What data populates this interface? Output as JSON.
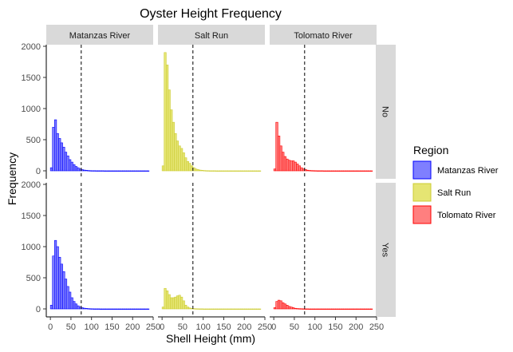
{
  "chart_data": {
    "type": "bar",
    "title": "Oyster Height Frequency",
    "xlabel": "Shell Height (mm)",
    "ylabel": "Frequency",
    "xlim": [
      -10,
      250
    ],
    "ylim": [
      0,
      2000
    ],
    "xticks": [
      0,
      50,
      100,
      150,
      200,
      250
    ],
    "yticks": [
      0,
      500,
      1000,
      1500,
      2000
    ],
    "bin_width": 5,
    "bins_start": 0,
    "reference_line_x": 75,
    "grid": false,
    "legend": {
      "title": "Region",
      "position": "right",
      "entries": [
        {
          "label": "Matanzas River",
          "fill": "#7f7fff",
          "stroke": "#0000ff"
        },
        {
          "label": "Salt Run",
          "fill": "#e5e573",
          "stroke": "#cccc33"
        },
        {
          "label": "Tolomato River",
          "fill": "#ff7f7f",
          "stroke": "#ff0000"
        }
      ]
    },
    "columns": [
      "Matanzas River",
      "Salt Run",
      "Tolomato River"
    ],
    "rows": [
      "No",
      "Yes"
    ],
    "panels": [
      {
        "row": "No",
        "column": "Matanzas River",
        "values": [
          50,
          700,
          820,
          600,
          520,
          450,
          380,
          300,
          240,
          180,
          140,
          100,
          70,
          50,
          30,
          20,
          12,
          8,
          5,
          3,
          2,
          2,
          1,
          1,
          1,
          1,
          0,
          0,
          0,
          0,
          0,
          0,
          0,
          0,
          0,
          0,
          0,
          0,
          0,
          0,
          0,
          0,
          0,
          0,
          0,
          0,
          0,
          0
        ]
      },
      {
        "row": "No",
        "column": "Salt Run",
        "values": [
          80,
          1900,
          1700,
          1300,
          980,
          780,
          600,
          480,
          400,
          360,
          290,
          210,
          150,
          120,
          80,
          50,
          30,
          20,
          12,
          8,
          5,
          3,
          2,
          1,
          1,
          1,
          0,
          0,
          0,
          0,
          0,
          0,
          0,
          0,
          0,
          0,
          0,
          0,
          0,
          0,
          0,
          0,
          0,
          0,
          0,
          0,
          0,
          0
        ]
      },
      {
        "row": "No",
        "column": "Tolomato River",
        "values": [
          30,
          780,
          560,
          400,
          300,
          230,
          190,
          170,
          160,
          160,
          140,
          110,
          80,
          50,
          30,
          20,
          10,
          6,
          4,
          3,
          2,
          1,
          1,
          1,
          0,
          0,
          0,
          0,
          0,
          0,
          0,
          0,
          0,
          0,
          0,
          0,
          0,
          0,
          0,
          0,
          0,
          0,
          0,
          0,
          0,
          0,
          0,
          0
        ]
      },
      {
        "row": "Yes",
        "column": "Matanzas River",
        "values": [
          60,
          850,
          1100,
          1000,
          830,
          720,
          600,
          480,
          360,
          270,
          180,
          120,
          80,
          50,
          30,
          20,
          12,
          8,
          5,
          3,
          2,
          1,
          1,
          1,
          0,
          0,
          0,
          0,
          0,
          0,
          0,
          0,
          0,
          0,
          0,
          0,
          0,
          0,
          0,
          0,
          0,
          0,
          0,
          0,
          0,
          0,
          0,
          0
        ]
      },
      {
        "row": "Yes",
        "column": "Salt Run",
        "values": [
          30,
          330,
          290,
          230,
          180,
          180,
          190,
          210,
          220,
          190,
          130,
          60,
          30,
          15,
          8,
          5,
          3,
          2,
          1,
          1,
          0,
          0,
          0,
          0,
          0,
          0,
          0,
          0,
          0,
          0,
          0,
          0,
          0,
          0,
          0,
          0,
          0,
          0,
          0,
          0,
          0,
          0,
          0,
          0,
          0,
          0,
          0,
          0
        ]
      },
      {
        "row": "Yes",
        "column": "Tolomato River",
        "values": [
          20,
          120,
          140,
          130,
          100,
          80,
          60,
          40,
          30,
          20,
          10,
          6,
          4,
          3,
          2,
          1,
          1,
          0,
          0,
          0,
          0,
          0,
          0,
          0,
          0,
          0,
          0,
          0,
          0,
          0,
          0,
          0,
          0,
          0,
          0,
          0,
          0,
          0,
          0,
          0,
          0,
          0,
          0,
          0,
          0,
          0,
          0,
          0
        ]
      }
    ]
  }
}
